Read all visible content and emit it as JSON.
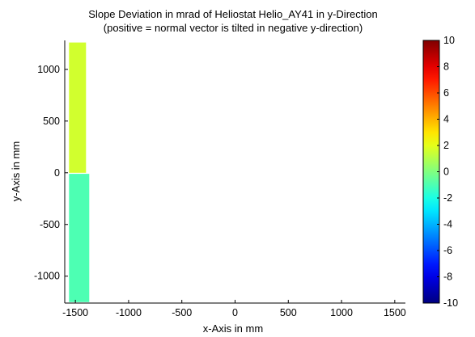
{
  "chart_data": {
    "type": "heatmap",
    "title": "Slope Deviation in mrad of Heliostat Helio_AY41 in y-Direction",
    "subtitle": "(positive = normal vector is tilted in negative y-direction)",
    "xlabel": "x-Axis in mm",
    "ylabel": "y-Axis in mm",
    "xlim": [
      -1600,
      1600
    ],
    "ylim": [
      -1260,
      1280
    ],
    "xticks": [
      -1500,
      -1000,
      -500,
      0,
      500,
      1000,
      1500
    ],
    "yticks": [
      -1000,
      -500,
      0,
      500,
      1000
    ],
    "grid": false,
    "colorbar": {
      "colormap": "jet",
      "range": [
        -10,
        10
      ],
      "ticks": [
        -10,
        -8,
        -6,
        -4,
        -2,
        0,
        2,
        4,
        6,
        8,
        10
      ]
    },
    "regions": [
      {
        "name": "upper panel",
        "x_range": [
          -1560,
          -1400
        ],
        "y_range": [
          0,
          1260
        ],
        "value": 1.6
      },
      {
        "name": "lower panel",
        "x_range": [
          -1560,
          -1370
        ],
        "y_range": [
          -1250,
          -10
        ],
        "value": -1.0
      }
    ]
  }
}
